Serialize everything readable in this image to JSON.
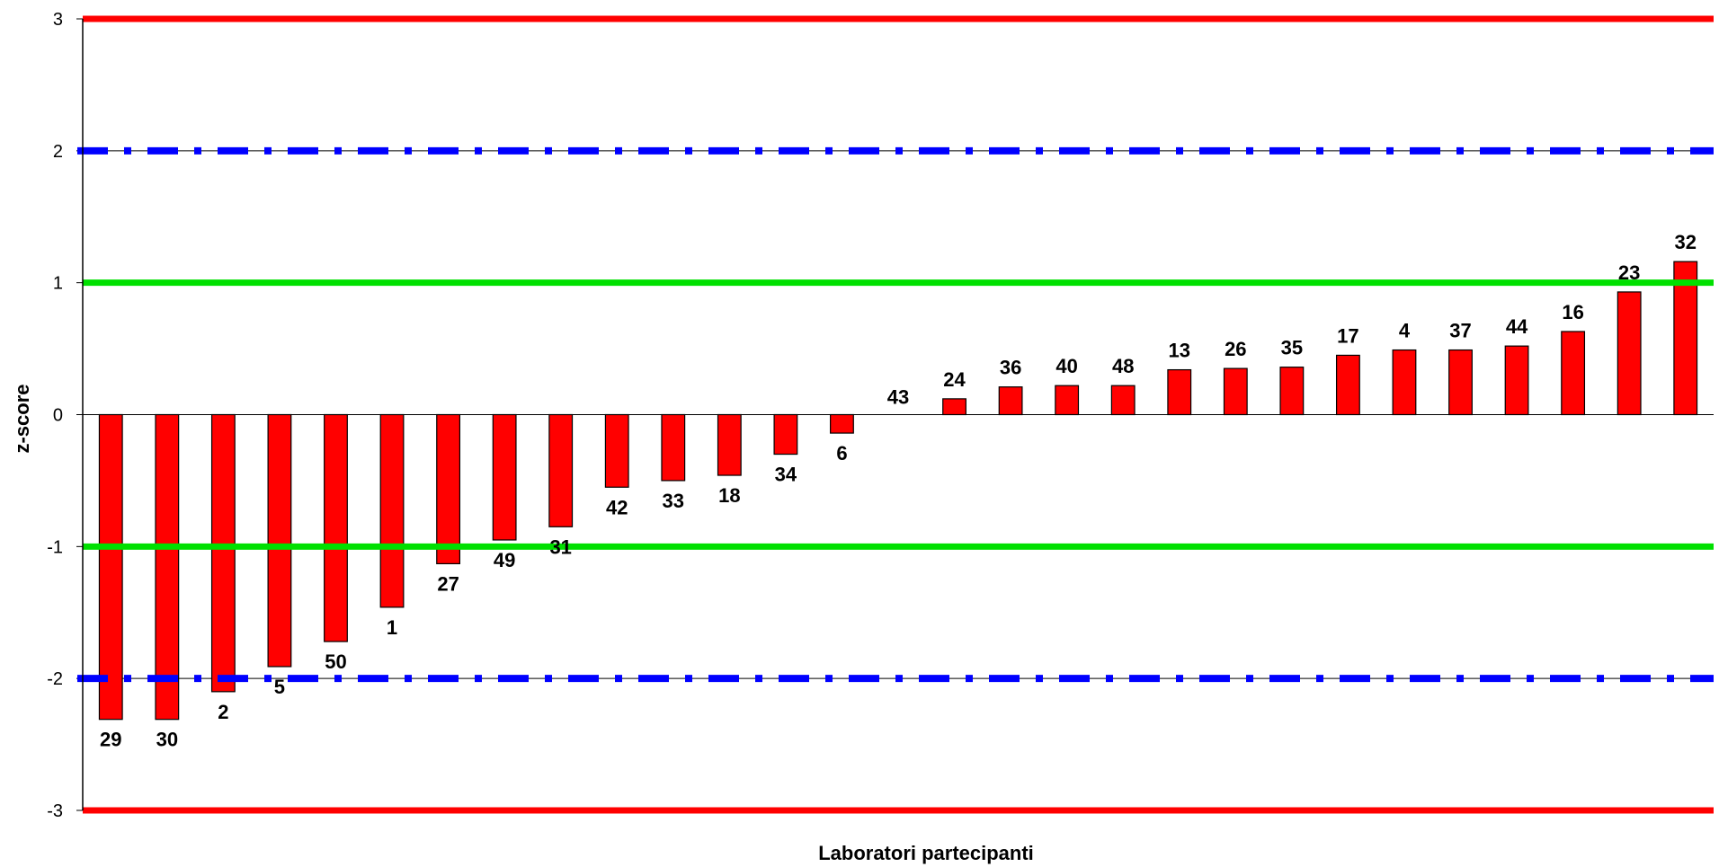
{
  "chart_data": {
    "type": "bar",
    "xlabel": "Laboratori partecipanti",
    "ylabel": "z-score",
    "ylim": [
      -3,
      3
    ],
    "yticks": [
      3,
      2,
      1,
      0,
      -1,
      -2,
      -3
    ],
    "grid": "horizontal",
    "categories": [
      "29",
      "30",
      "2",
      "5",
      "50",
      "1",
      "27",
      "49",
      "31",
      "42",
      "33",
      "18",
      "34",
      "6",
      "43",
      "24",
      "36",
      "40",
      "48",
      "13",
      "26",
      "35",
      "17",
      "4",
      "37",
      "44",
      "16",
      "23",
      "32"
    ],
    "values": [
      -2.31,
      -2.31,
      -2.1,
      -1.91,
      -1.72,
      -1.46,
      -1.13,
      -0.95,
      -0.85,
      -0.55,
      -0.5,
      -0.46,
      -0.3,
      -0.14,
      0.0,
      0.12,
      0.21,
      0.22,
      0.22,
      0.34,
      0.35,
      0.36,
      0.45,
      0.49,
      0.49,
      0.52,
      0.63,
      0.93,
      1.16
    ],
    "reference_lines": [
      {
        "value": 3,
        "style": "solid",
        "color": "#ff0000"
      },
      {
        "value": -3,
        "style": "solid",
        "color": "#ff0000"
      },
      {
        "value": 2,
        "style": "dash-dot",
        "color": "#0000ff"
      },
      {
        "value": -2,
        "style": "dash-dot",
        "color": "#0000ff"
      },
      {
        "value": 1,
        "style": "solid",
        "color": "#00e000"
      },
      {
        "value": -1,
        "style": "solid",
        "color": "#00e000"
      }
    ],
    "bar_color": "#ff0000"
  }
}
